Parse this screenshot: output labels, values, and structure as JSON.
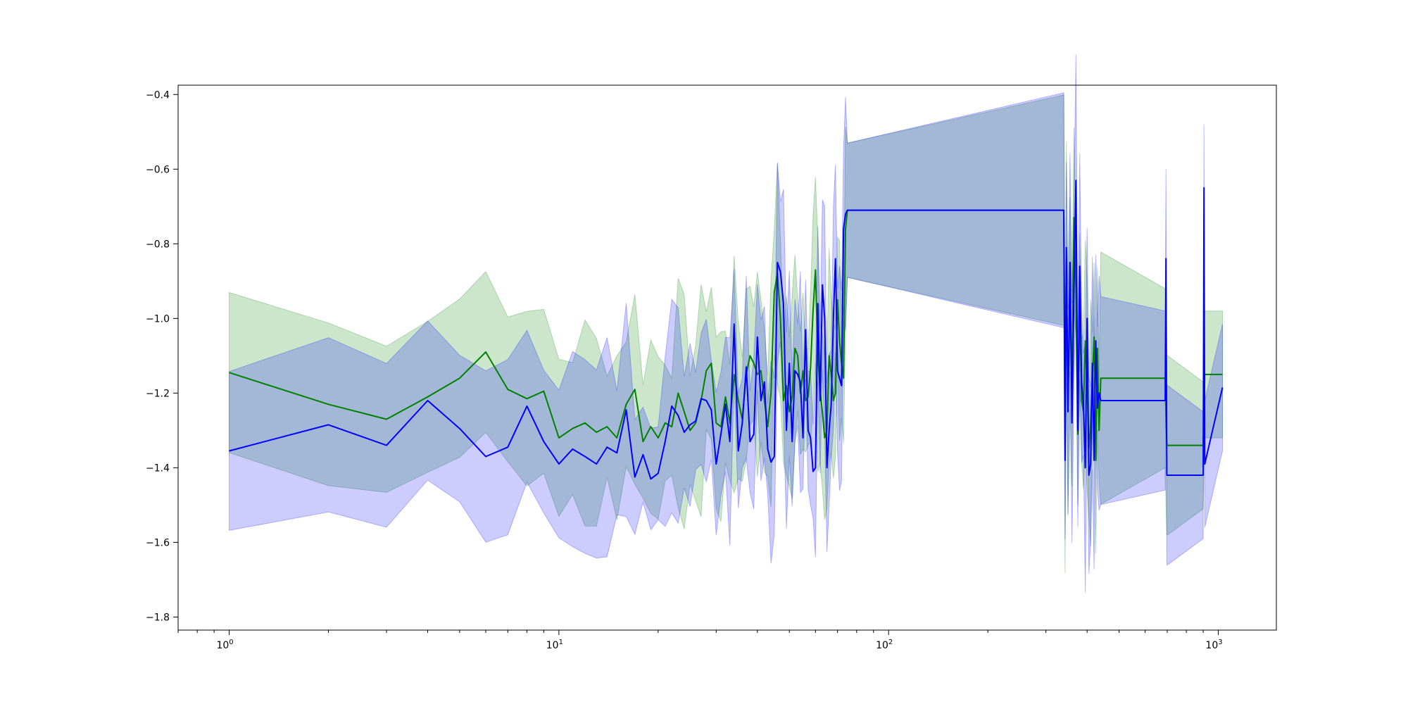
{
  "chart_data": {
    "type": "line",
    "title": "",
    "xlabel": "",
    "ylabel": "",
    "xscale": "log",
    "xlim": [
      0.7,
      1500
    ],
    "ylim": [
      -1.835,
      -0.375
    ],
    "grid": false,
    "legend": "none",
    "x_ticks": [
      {
        "value": 1,
        "base": "10",
        "exp": "0"
      },
      {
        "value": 10,
        "base": "10",
        "exp": "1"
      },
      {
        "value": 100,
        "base": "10",
        "exp": "2"
      },
      {
        "value": 1000,
        "base": "10",
        "exp": "3"
      }
    ],
    "y_ticks": [
      {
        "value": -0.4,
        "label": "−0.4"
      },
      {
        "value": -0.6,
        "label": "−0.6"
      },
      {
        "value": -0.8,
        "label": "−0.8"
      },
      {
        "value": -1.0,
        "label": "−1.0"
      },
      {
        "value": -1.2,
        "label": "−1.2"
      },
      {
        "value": -1.4,
        "label": "−1.4"
      },
      {
        "value": -1.6,
        "label": "−1.6"
      },
      {
        "value": -1.8,
        "label": "−1.8"
      }
    ],
    "series": [
      {
        "color": "#008000",
        "band_color": "#008000",
        "band_opacity": 0.2,
        "x": [
          1,
          2,
          3,
          4,
          5,
          6,
          7,
          8,
          9,
          10,
          11,
          12,
          13,
          14,
          15,
          16,
          17,
          18,
          19,
          20,
          21,
          22,
          23,
          24,
          25,
          26,
          27,
          28,
          29,
          30,
          31,
          32,
          33,
          34,
          35,
          36,
          37,
          38,
          39,
          40,
          41,
          42,
          43,
          44,
          45,
          46,
          47,
          48,
          49,
          50,
          51,
          52,
          53,
          54,
          55,
          56,
          57,
          58,
          59,
          60,
          61,
          62,
          63,
          64,
          65,
          66,
          67,
          68,
          69,
          70,
          71,
          72,
          73,
          74,
          75,
          340,
          343,
          346,
          350,
          355,
          360,
          365,
          370,
          375,
          380,
          385,
          390,
          395,
          400,
          405,
          410,
          415,
          420,
          425,
          430,
          435,
          440,
          690,
          694,
          698,
          702,
          900,
          905,
          910,
          1030
        ],
        "y": [
          -1.145,
          -1.23,
          -1.27,
          -1.21,
          -1.16,
          -1.09,
          -1.19,
          -1.215,
          -1.195,
          -1.32,
          -1.295,
          -1.28,
          -1.305,
          -1.29,
          -1.32,
          -1.23,
          -1.19,
          -1.33,
          -1.29,
          -1.32,
          -1.28,
          -1.29,
          -1.2,
          -1.25,
          -1.3,
          -1.28,
          -1.22,
          -1.14,
          -1.12,
          -1.28,
          -1.29,
          -1.21,
          -1.28,
          -1.15,
          -1.22,
          -1.27,
          -1.15,
          -1.1,
          -1.12,
          -1.15,
          -1.14,
          -1.22,
          -1.29,
          -1.2,
          -0.93,
          -0.88,
          -1.0,
          -1.22,
          -1.18,
          -1.25,
          -1.21,
          -1.08,
          -1.1,
          -1.2,
          -1.14,
          -1.22,
          -1.21,
          -1.13,
          -0.98,
          -0.87,
          -1.1,
          -1.2,
          -1.25,
          -1.32,
          -1.3,
          -1.1,
          -1.15,
          -1.22,
          -1.2,
          -0.95,
          -1.06,
          -1.12,
          -1.16,
          -0.76,
          -0.71,
          -0.71,
          -1.35,
          -0.85,
          -1.22,
          -0.96,
          -1.19,
          -0.73,
          -0.92,
          -1.31,
          -0.97,
          -1.22,
          -1.25,
          -1.06,
          -1.18,
          -1.35,
          -1.28,
          -1.16,
          -1.05,
          -1.38,
          -1.08,
          -1.3,
          -1.16,
          -1.16,
          -1.26,
          -1.34,
          -1.34,
          -1.34,
          -1.25,
          -1.15,
          -1.15
        ]
      },
      {
        "color": "#0000ff",
        "band_color": "#0000ff",
        "band_opacity": 0.2,
        "x": [
          1,
          2,
          3,
          4,
          5,
          6,
          7,
          8,
          9,
          10,
          11,
          12,
          13,
          14,
          15,
          16,
          17,
          18,
          19,
          20,
          21,
          22,
          23,
          24,
          25,
          26,
          27,
          28,
          29,
          30,
          31,
          32,
          33,
          34,
          35,
          36,
          37,
          38,
          39,
          40,
          41,
          42,
          43,
          44,
          45,
          46,
          47,
          48,
          49,
          50,
          51,
          52,
          53,
          54,
          55,
          56,
          57,
          58,
          59,
          60,
          61,
          62,
          63,
          64,
          65,
          66,
          67,
          68,
          69,
          70,
          71,
          72,
          73,
          74,
          75,
          340,
          343,
          346,
          350,
          355,
          360,
          365,
          370,
          375,
          380,
          385,
          390,
          395,
          400,
          405,
          410,
          415,
          420,
          425,
          430,
          435,
          440,
          690,
          694,
          698,
          702,
          900,
          905,
          910,
          1030
        ],
        "y": [
          -1.355,
          -1.285,
          -1.34,
          -1.22,
          -1.295,
          -1.37,
          -1.345,
          -1.235,
          -1.33,
          -1.39,
          -1.35,
          -1.37,
          -1.39,
          -1.345,
          -1.36,
          -1.245,
          -1.425,
          -1.365,
          -1.43,
          -1.415,
          -1.33,
          -1.235,
          -1.26,
          -1.305,
          -1.285,
          -1.275,
          -1.215,
          -1.22,
          -1.245,
          -1.39,
          -1.31,
          -1.23,
          -1.33,
          -1.015,
          -1.355,
          -1.28,
          -1.13,
          -1.33,
          -1.31,
          -1.05,
          -1.22,
          -1.17,
          -1.35,
          -1.385,
          -1.37,
          -0.85,
          -0.875,
          -0.96,
          -1.3,
          -1.12,
          -1.33,
          -1.14,
          -1.15,
          -1.17,
          -1.32,
          -1.03,
          -1.3,
          -1.32,
          -1.41,
          -1.4,
          -0.96,
          -1.22,
          -0.91,
          -1.0,
          -1.4,
          -1.3,
          -1.23,
          -1.0,
          -0.84,
          -1.14,
          -1.16,
          -1.18,
          -0.76,
          -0.72,
          -0.71,
          -0.71,
          -1.38,
          -0.81,
          -1.25,
          -0.85,
          -1.28,
          -0.93,
          -0.63,
          -1.3,
          -0.86,
          -1.17,
          -1.23,
          -1.4,
          -1.0,
          -1.42,
          -1.39,
          -1.12,
          -1.38,
          -1.06,
          -1.24,
          -1.2,
          -1.22,
          -1.22,
          -0.84,
          -1.42,
          -1.42,
          -1.42,
          -0.65,
          -1.39,
          -1.185
        ]
      }
    ]
  }
}
